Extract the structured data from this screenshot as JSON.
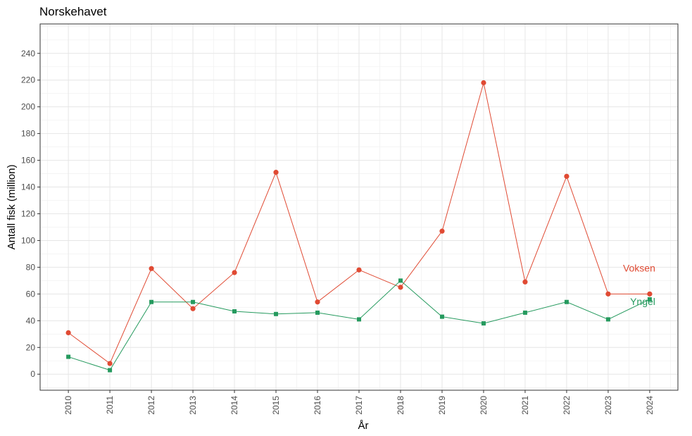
{
  "chart_data": {
    "type": "line",
    "title": "Norskehavet",
    "xlabel": "År",
    "ylabel": "Antall fisk (million)",
    "x": [
      2010,
      2011,
      2012,
      2013,
      2014,
      2015,
      2016,
      2017,
      2018,
      2019,
      2020,
      2021,
      2022,
      2023,
      2024
    ],
    "x_tick_labels": [
      "2010",
      "2011",
      "2012",
      "2013",
      "2014",
      "2015",
      "2016",
      "2017",
      "2018",
      "2019",
      "2020",
      "2021",
      "2022",
      "2023",
      "2024"
    ],
    "y_ticks": [
      0,
      20,
      40,
      60,
      80,
      100,
      120,
      140,
      160,
      180,
      200,
      220,
      240
    ],
    "ylim": [
      -12,
      262
    ],
    "grid": true,
    "series": [
      {
        "name": "Voksen",
        "color": "#e04a33",
        "marker": "circle",
        "values": [
          31,
          8,
          79,
          49,
          76,
          151,
          54,
          78,
          65,
          107,
          218,
          69,
          148,
          60,
          60
        ]
      },
      {
        "name": "Yngel",
        "color": "#259a5e",
        "marker": "square",
        "values": [
          13,
          3,
          54,
          54,
          47,
          45,
          46,
          41,
          70,
          43,
          38,
          46,
          54,
          41,
          56
        ]
      }
    ]
  }
}
